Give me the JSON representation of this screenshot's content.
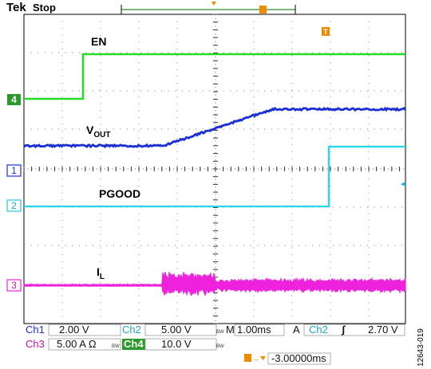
{
  "header": {
    "brand": "Tek",
    "state": "Stop"
  },
  "traces": {
    "en": {
      "label": "EN",
      "color": "#22dd22",
      "marker": "4"
    },
    "vout": {
      "label_main": "V",
      "label_sub": "OUT",
      "color": "#1a2fd6",
      "marker": "1"
    },
    "pgood": {
      "label": "PGOOD",
      "color": "#22d8e8",
      "marker": "2"
    },
    "il": {
      "label_main": "I",
      "label_sub": "L",
      "color": "#ee22dd",
      "marker": "3"
    }
  },
  "trigger": {
    "marker": "T",
    "color": "#f08a00"
  },
  "readouts": {
    "ch1": {
      "name": "Ch1",
      "value": "2.00 V"
    },
    "ch2": {
      "name": "Ch2",
      "value": "5.00 V",
      "bw": "BW"
    },
    "ch3": {
      "name": "Ch3",
      "value": "5.00 A",
      "ohm": "Ω",
      "bw": "BW"
    },
    "ch4": {
      "name": "Ch4",
      "value": "10.0 V",
      "bw": "BW"
    },
    "timebase": {
      "prefix": "M",
      "value": "1.00ms"
    },
    "trig": {
      "mode": "A",
      "source": "Ch2",
      "slope": "ʃ",
      "level": "2.70 V"
    },
    "position": {
      "value": "-3.00000ms"
    }
  },
  "figure_id": "12643-019"
}
